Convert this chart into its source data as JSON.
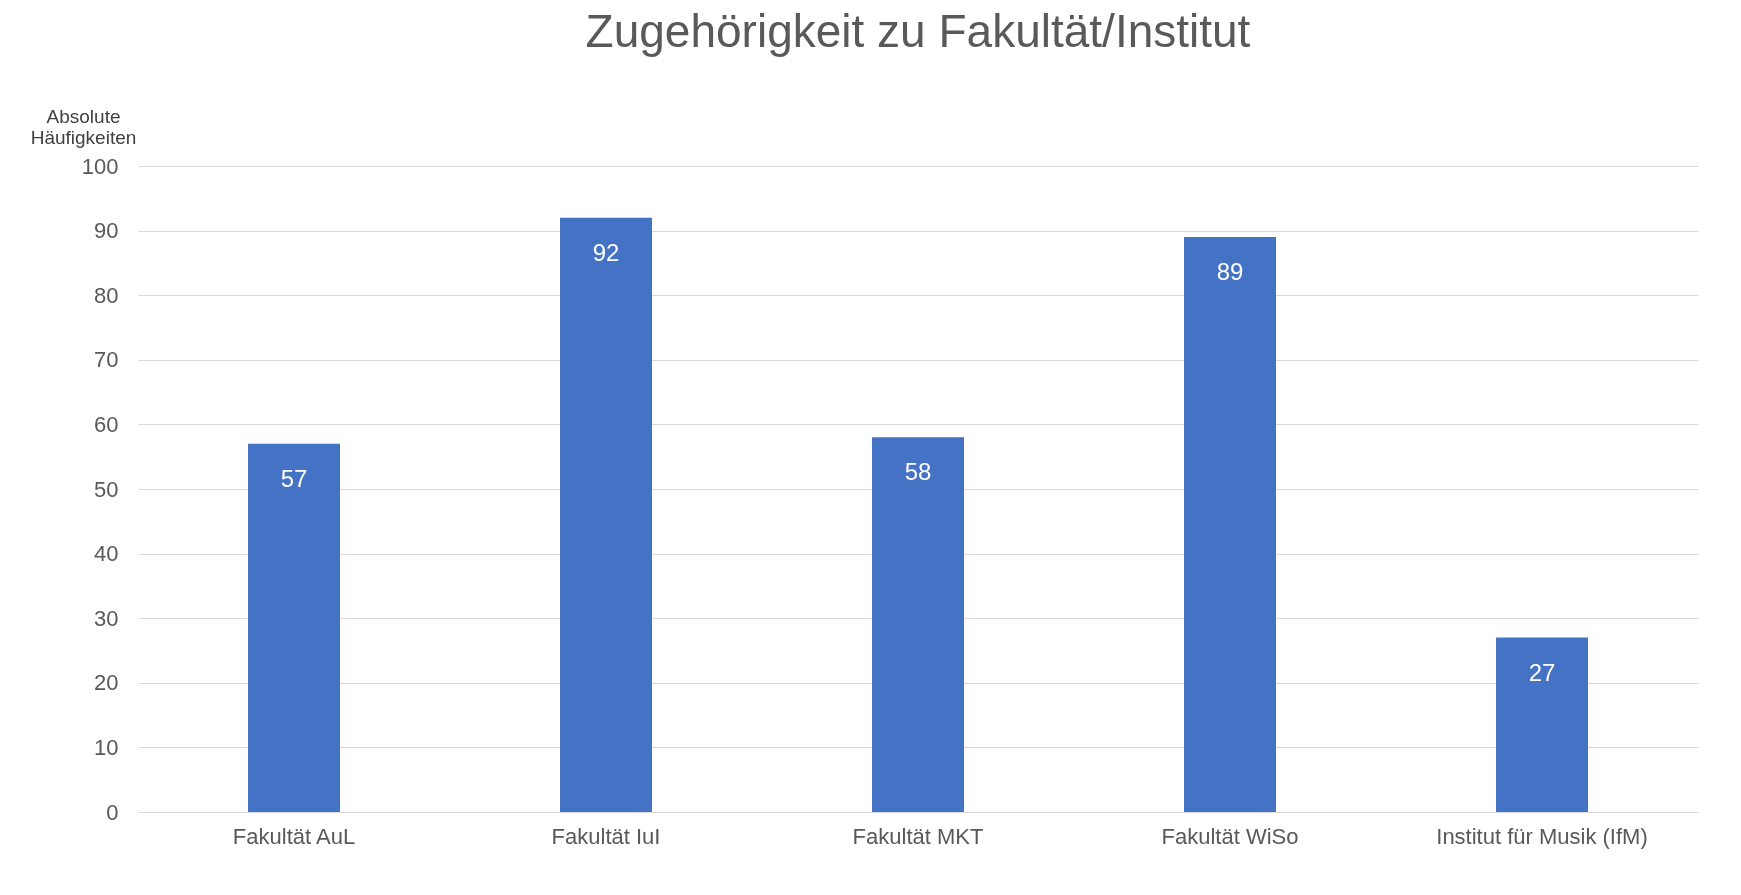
{
  "chart_data": {
    "type": "bar",
    "title": "Zugehörigkeit zu Fakultät/Institut",
    "ylabel": "Absolute Häufigkeiten",
    "categories": [
      "Fakultät AuL",
      "Fakultät IuI",
      "Fakultät MKT",
      "Fakultät WiSo",
      "Institut für Musik (IfM)"
    ],
    "values": [
      57,
      92,
      58,
      89,
      27
    ],
    "color": "#4472c4",
    "ylim": [
      0,
      100
    ],
    "yticks": [
      0,
      10,
      20,
      30,
      40,
      50,
      60,
      70,
      80,
      90,
      100
    ],
    "grid": "y",
    "data_labels": true
  }
}
